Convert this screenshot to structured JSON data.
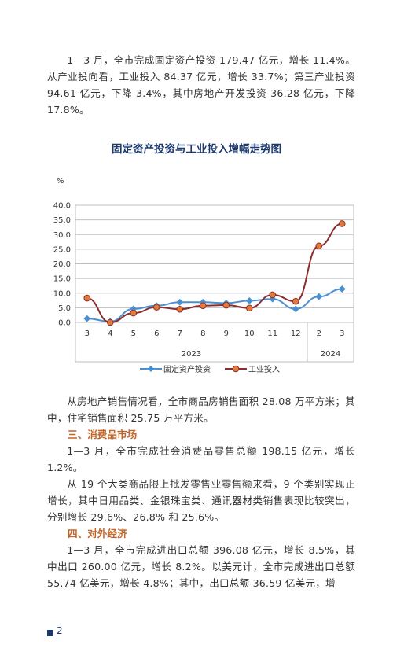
{
  "paragraphs": {
    "p1": "1—3 月，全市完成固定资产投资 179.47 亿元，增长 11.4%。从产业投向看，工业投入 84.37 亿元，增长 33.7%；第三产业投资 94.61 亿元，下降 3.4%，其中房地产开发投资 36.28 亿元，下降 17.8%。",
    "p2": "从房地产销售情况看，全市商品房销售面积 28.08 万平方米；其中，住宅销售面积 25.75 万平方米。",
    "h3": "三、消费品市场",
    "p3": "1—3 月，全市完成社会消费品零售总额 198.15 亿元，增长 1.2%。",
    "p4": "从 19 个大类商品限上批发零售业零售额来看，9 个类别实现正增长，其中日用品类、金银珠宝类、通讯器材类销售表现比较突出，分别增长 29.6%、26.8% 和 25.6%。",
    "h4": "四、对外经济",
    "p5": "1—3 月，全市完成进出口总额 396.08 亿元，增长 8.5%，其中出口 260.00 亿元，增长 8.2%。以美元计，全市完成进出口总额 55.74 亿美元，增长 4.8%；其中，出口总额 36.59 亿美元，增"
  },
  "page_number": "2",
  "colors": {
    "series1": "#4a8fd1",
    "series2": "#8b2d2d",
    "series2_marker": "#e07b39",
    "title": "#1e3a6b",
    "heading": "#c0652a"
  },
  "chart_data": {
    "type": "line",
    "title": "固定资产投资与工业投入增幅走势图",
    "ylabel": "%",
    "ylim": [
      0,
      40
    ],
    "yticks": [
      "0.0",
      "5.0",
      "10.0",
      "15.0",
      "20.0",
      "25.0",
      "30.0",
      "35.0",
      "40.0"
    ],
    "categories": [
      "3",
      "4",
      "5",
      "6",
      "7",
      "8",
      "9",
      "10",
      "11",
      "12",
      "2",
      "3"
    ],
    "year_groups": [
      {
        "label": "2023",
        "span": 10
      },
      {
        "label": "2024",
        "span": 2
      }
    ],
    "grid": true,
    "legend": "bottom",
    "series": [
      {
        "name": "固定资产投资",
        "marker": "diamond",
        "values": [
          1.3,
          0.3,
          4.6,
          5.7,
          6.9,
          6.9,
          6.6,
          7.4,
          8.0,
          4.6,
          8.8,
          11.4
        ]
      },
      {
        "name": "工业投入",
        "marker": "circle",
        "values": [
          8.3,
          0.0,
          3.2,
          5.2,
          4.5,
          5.7,
          5.9,
          4.9,
          9.4,
          7.2,
          26.1,
          33.7
        ]
      }
    ]
  }
}
